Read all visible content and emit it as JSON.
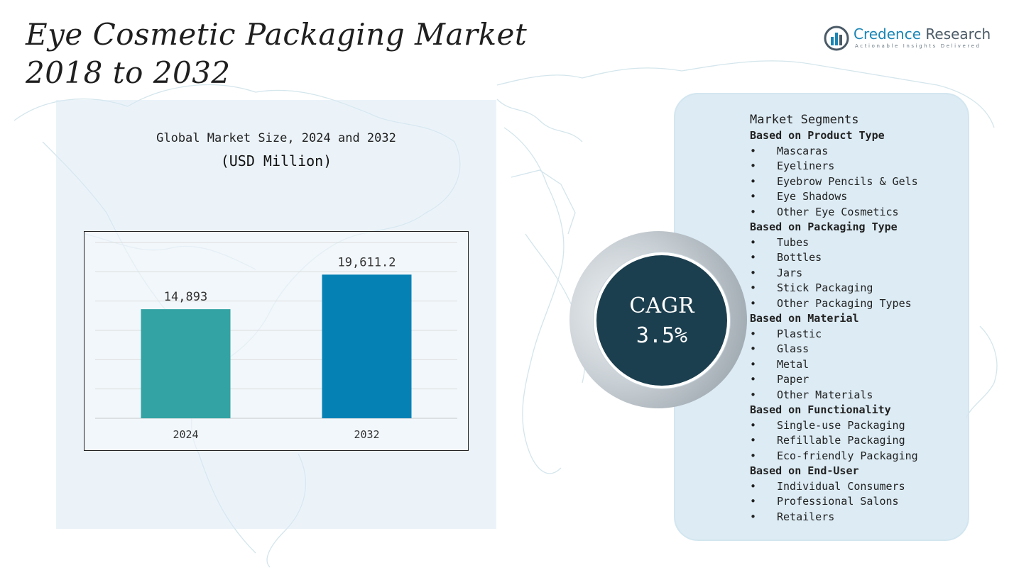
{
  "title": {
    "line1": "Eye Cosmetic Packaging Market",
    "line2": "2018 to 2032"
  },
  "logo": {
    "brand_part1": "Credence",
    "brand_part2": "Research",
    "tagline": "Actionable Insights Delivered",
    "icon": "bar-chart-circle-icon"
  },
  "chart_panel": {
    "title_line1": "Global Market Size, 2024 and 2032",
    "title_line2": "(USD Million)"
  },
  "chart_data": {
    "type": "bar",
    "categories": [
      "2024",
      "2032"
    ],
    "values": [
      14893,
      19611.2
    ],
    "value_labels": [
      "14,893",
      "19,611.2"
    ],
    "colors": [
      "#33a3a4",
      "#0581b4"
    ],
    "ylim": [
      0,
      24000
    ],
    "grid": true,
    "legend": "none"
  },
  "cagr": {
    "label": "CAGR",
    "value": "3.5%"
  },
  "segments": {
    "heading": "Market Segments",
    "groups": [
      {
        "title": "Based on Product Type",
        "items": [
          "Mascaras",
          "Eyeliners",
          "Eyebrow Pencils & Gels",
          "Eye Shadows",
          "Other Eye Cosmetics"
        ]
      },
      {
        "title": "Based on Packaging Type",
        "items": [
          "Tubes",
          "Bottles",
          "Jars",
          "Stick Packaging",
          "Other Packaging Types"
        ]
      },
      {
        "title": "Based on Material",
        "items": [
          "Plastic",
          "Glass",
          "Metal",
          "Paper",
          "Other Materials"
        ]
      },
      {
        "title": "Based on Functionality",
        "items": [
          "Single-use Packaging",
          "Refillable Packaging",
          "Eco-friendly Packaging"
        ]
      },
      {
        "title": "Based on End-User",
        "items": [
          "Individual Consumers",
          "Professional Salons",
          "Retailers"
        ]
      }
    ]
  }
}
